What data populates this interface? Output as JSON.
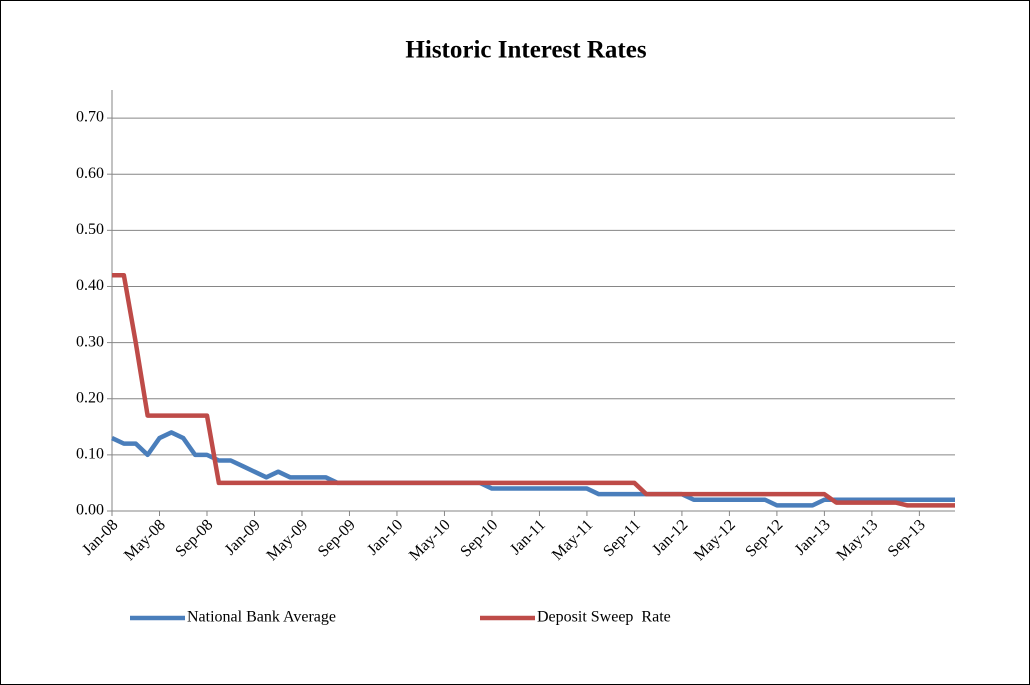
{
  "chart_data": {
    "type": "line",
    "title": "Historic Interest Rates",
    "categories": [
      "Jan-08",
      null,
      null,
      null,
      "May-08",
      null,
      null,
      null,
      "Sep-08",
      null,
      null,
      null,
      "Jan-09",
      null,
      null,
      null,
      "May-09",
      null,
      null,
      null,
      "Sep-09",
      null,
      null,
      null,
      "Jan-10",
      null,
      null,
      null,
      "May-10",
      null,
      null,
      null,
      "Sep-10",
      null,
      null,
      null,
      "Jan-11",
      null,
      null,
      null,
      "May-11",
      null,
      null,
      null,
      "Sep-11",
      null,
      null,
      null,
      "Jan-12",
      null,
      null,
      null,
      "May-12",
      null,
      null,
      null,
      "Sep-12",
      null,
      null,
      null,
      "Jan-13",
      null,
      null,
      null,
      "May-13",
      null,
      null,
      null,
      "Sep-13",
      null,
      null,
      null
    ],
    "series": [
      {
        "name": "National Bank Average",
        "color": "#4a7ebb",
        "values": [
          0.13,
          0.12,
          0.12,
          0.1,
          0.13,
          0.14,
          0.13,
          0.1,
          0.1,
          0.09,
          0.09,
          0.08,
          0.07,
          0.06,
          0.07,
          0.06,
          0.06,
          0.06,
          0.06,
          0.05,
          0.05,
          0.05,
          0.05,
          0.05,
          0.05,
          0.05,
          0.05,
          0.05,
          0.05,
          0.05,
          0.05,
          0.05,
          0.04,
          0.04,
          0.04,
          0.04,
          0.04,
          0.04,
          0.04,
          0.04,
          0.04,
          0.03,
          0.03,
          0.03,
          0.03,
          0.03,
          0.03,
          0.03,
          0.03,
          0.02,
          0.02,
          0.02,
          0.02,
          0.02,
          0.02,
          0.02,
          0.01,
          0.01,
          0.01,
          0.01,
          0.02,
          0.02,
          0.02,
          0.02,
          0.02,
          0.02,
          0.02,
          0.02,
          0.02,
          0.02,
          0.02,
          0.02
        ]
      },
      {
        "name": "Deposit Sweep  Rate",
        "color": "#be4b48",
        "values": [
          0.42,
          0.42,
          0.3,
          0.17,
          0.17,
          0.17,
          0.17,
          0.17,
          0.17,
          0.05,
          0.05,
          0.05,
          0.05,
          0.05,
          0.05,
          0.05,
          0.05,
          0.05,
          0.05,
          0.05,
          0.05,
          0.05,
          0.05,
          0.05,
          0.05,
          0.05,
          0.05,
          0.05,
          0.05,
          0.05,
          0.05,
          0.05,
          0.05,
          0.05,
          0.05,
          0.05,
          0.05,
          0.05,
          0.05,
          0.05,
          0.05,
          0.05,
          0.05,
          0.05,
          0.05,
          0.03,
          0.03,
          0.03,
          0.03,
          0.03,
          0.03,
          0.03,
          0.03,
          0.03,
          0.03,
          0.03,
          0.03,
          0.03,
          0.03,
          0.03,
          0.03,
          0.015,
          0.015,
          0.015,
          0.015,
          0.015,
          0.015,
          0.01,
          0.01,
          0.01,
          0.01,
          0.01
        ]
      }
    ],
    "ylim": [
      0,
      0.75
    ],
    "yticks": [
      {
        "value": 0,
        "label": "0.00"
      },
      {
        "value": 0.1,
        "label": "0.10"
      },
      {
        "value": 0.2,
        "label": "0.20"
      },
      {
        "value": 0.3,
        "label": "0.30"
      },
      {
        "value": 0.4,
        "label": "0.40"
      },
      {
        "value": 0.5,
        "label": "0.50"
      },
      {
        "value": 0.6,
        "label": "0.60"
      },
      {
        "value": 0.7,
        "label": "0.70"
      }
    ],
    "grid": true,
    "legend": "bottom"
  }
}
